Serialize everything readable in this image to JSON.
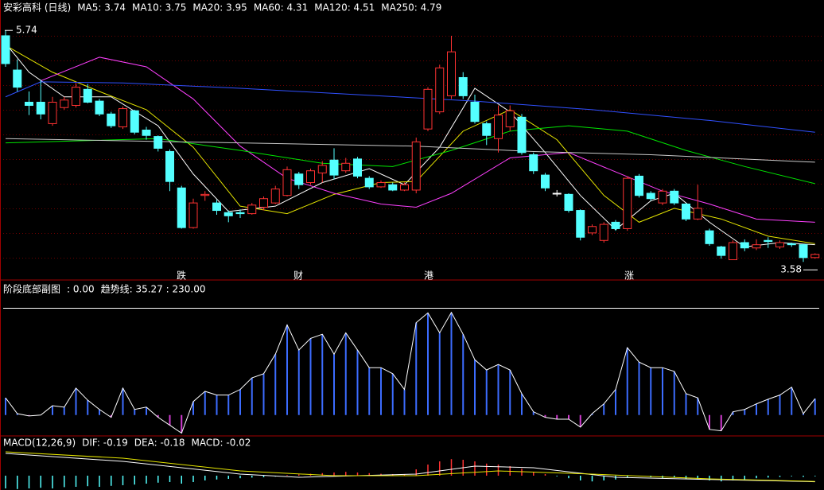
{
  "chart_data": [
    {
      "type": "candlestick",
      "title": "安彩高科 (日线)",
      "open": [
        5.69,
        5.37,
        5.07,
        5.07,
        4.87,
        5.02,
        5.04,
        5.19,
        5.08,
        4.96,
        4.84,
        4.99,
        4.81,
        4.75,
        4.61,
        4.27,
        3.9,
        4.2,
        4.13,
        4.04,
        4.04,
        4.03,
        4.09,
        4.13,
        4.2,
        4.4,
        4.32,
        4.41,
        4.53,
        4.43,
        4.54,
        4.36,
        4.28,
        4.3,
        4.25,
        4.25,
        4.82,
        4.98,
        5.13,
        5.3,
        5.07,
        4.87,
        4.73,
        4.84,
        4.93,
        4.58,
        4.39,
        4.22,
        4.21,
        4.06,
        3.85,
        3.78,
        3.95,
        3.89,
        4.38,
        4.22,
        4.13,
        4.24,
        4.12,
        3.98,
        3.87,
        3.72,
        3.6,
        3.76,
        3.71,
        3.78,
        3.72,
        3.75,
        3.74,
        3.62
      ],
      "high": [
        5.74,
        5.47,
        5.17,
        5.28,
        5.12,
        5.12,
        5.25,
        5.24,
        5.1,
        4.98,
        5.03,
        5.0,
        4.84,
        4.76,
        4.63,
        4.29,
        4.17,
        4.24,
        4.16,
        4.06,
        4.07,
        4.13,
        4.19,
        4.29,
        4.47,
        4.42,
        4.45,
        4.52,
        4.64,
        4.55,
        4.56,
        4.38,
        4.34,
        4.32,
        4.32,
        4.74,
        5.21,
        5.42,
        5.69,
        5.35,
        5.14,
        4.89,
        5.04,
        5.04,
        4.96,
        4.6,
        4.41,
        4.25,
        4.22,
        4.07,
        3.93,
        3.95,
        3.97,
        4.38,
        4.4,
        4.24,
        4.26,
        4.26,
        4.13,
        4.3,
        3.89,
        3.73,
        3.78,
        3.79,
        3.79,
        3.81,
        3.78,
        3.76,
        3.75,
        3.66
      ],
      "low": [
        5.4,
        5.17,
        4.95,
        4.91,
        4.85,
        5.0,
        5.02,
        5.06,
        4.94,
        4.83,
        4.82,
        4.77,
        4.72,
        4.61,
        4.24,
        3.89,
        3.89,
        4.15,
        4.02,
        3.95,
        3.99,
        4.02,
        4.06,
        4.12,
        4.19,
        4.26,
        4.3,
        4.32,
        4.35,
        4.41,
        4.36,
        4.26,
        4.27,
        4.24,
        4.24,
        4.22,
        4.8,
        4.96,
        5.1,
        5.1,
        4.87,
        4.67,
        4.6,
        4.8,
        4.58,
        4.4,
        4.24,
        4.19,
        4.04,
        3.78,
        3.83,
        3.76,
        3.87,
        3.87,
        4.18,
        4.15,
        4.11,
        4.11,
        3.96,
        3.97,
        3.73,
        3.61,
        3.6,
        3.68,
        3.69,
        3.71,
        3.7,
        3.72,
        3.58,
        3.61
      ],
      "close": [
        5.43,
        5.21,
        5.04,
        4.96,
        5.07,
        5.09,
        5.21,
        5.07,
        4.96,
        4.85,
        5.01,
        4.79,
        4.76,
        4.64,
        4.33,
        3.9,
        4.13,
        4.21,
        4.06,
        4.01,
        4.03,
        4.11,
        4.17,
        4.26,
        4.44,
        4.3,
        4.43,
        4.48,
        4.39,
        4.5,
        4.38,
        4.28,
        4.32,
        4.25,
        4.3,
        4.7,
        5.19,
        5.39,
        5.54,
        5.13,
        4.89,
        4.76,
        4.95,
        4.99,
        4.6,
        4.43,
        4.27,
        4.22,
        4.06,
        3.81,
        3.91,
        3.93,
        3.89,
        4.36,
        4.2,
        4.17,
        4.24,
        4.13,
        3.98,
        4.08,
        3.75,
        3.64,
        3.76,
        3.71,
        3.74,
        3.77,
        3.76,
        3.74,
        3.62,
        3.65
      ],
      "up_color": "#ff3232",
      "down_color": "#54ffff",
      "ylim": [
        3.5,
        5.89
      ],
      "series": [
        {
          "name": "MA5: 3.74",
          "color": "#ffffff",
          "x": [
            0,
            2,
            5,
            9,
            13,
            16,
            19,
            23,
            27,
            31,
            34,
            37,
            40,
            43,
            46,
            49,
            52,
            55,
            57,
            60,
            63,
            66,
            69
          ],
          "values": [
            5.62,
            5.35,
            5.12,
            5.12,
            4.85,
            4.4,
            4.05,
            4.1,
            4.32,
            4.45,
            4.3,
            4.65,
            5.2,
            4.98,
            4.6,
            4.2,
            3.88,
            4.15,
            4.22,
            3.95,
            3.72,
            3.76,
            3.74
          ]
        },
        {
          "name": "MA10: 3.75",
          "color": "#e6e600",
          "x": [
            0,
            4,
            8,
            12,
            16,
            20,
            24,
            28,
            32,
            35,
            39,
            43,
            47,
            51,
            54,
            57,
            61,
            65,
            69
          ],
          "values": [
            5.6,
            5.35,
            5.17,
            5.0,
            4.65,
            4.1,
            4.03,
            4.21,
            4.32,
            4.33,
            4.8,
            5.0,
            4.72,
            4.2,
            3.95,
            4.08,
            3.98,
            3.82,
            3.75
          ]
        },
        {
          "name": "MA20: 3.95",
          "color": "#ff40ff",
          "x": [
            3,
            8,
            12,
            16,
            20,
            24,
            28,
            32,
            35,
            38,
            43,
            48,
            52,
            56,
            60,
            64,
            69
          ],
          "values": [
            5.27,
            5.49,
            5.4,
            5.1,
            4.66,
            4.36,
            4.22,
            4.12,
            4.09,
            4.22,
            4.55,
            4.6,
            4.42,
            4.24,
            4.12,
            3.98,
            3.95
          ]
        },
        {
          "name": "MA60: 4.31",
          "color": "#00e600",
          "x": [
            0,
            13,
            20,
            27,
            33,
            38,
            43,
            48,
            53,
            58,
            63,
            69
          ],
          "values": [
            4.69,
            4.73,
            4.62,
            4.5,
            4.47,
            4.62,
            4.8,
            4.85,
            4.8,
            4.62,
            4.47,
            4.31
          ]
        },
        {
          "name": "MA120: 4.51",
          "color": "#c8c8c8",
          "x": [
            0,
            35,
            45,
            55,
            69
          ],
          "values": [
            4.73,
            4.66,
            4.61,
            4.58,
            4.51
          ]
        },
        {
          "name": "MA250: 4.79",
          "color": "#3050ff",
          "x": [
            0,
            3,
            10,
            20,
            30,
            40,
            50,
            60,
            69
          ],
          "values": [
            5.12,
            5.26,
            5.25,
            5.2,
            5.14,
            5.08,
            5.0,
            4.9,
            4.79
          ]
        }
      ],
      "high_label": {
        "value": 5.74,
        "label": "5.74"
      },
      "low_label": {
        "value": 3.58,
        "label": "3.58"
      },
      "events": [
        {
          "label": "跌",
          "color": "#00d000"
        },
        {
          "label": "财",
          "color": "#80c8ff"
        },
        {
          "label": "港",
          "color": "#00d000"
        },
        {
          "label": "涨",
          "color": "#ff4040"
        }
      ]
    },
    {
      "type": "bar",
      "title": "阶段底部副图",
      "subtitle": ": 0.00",
      "series": [
        {
          "name": "趋势线: 35.27 : 230.00",
          "color": "#ffffff",
          "values": [
            37,
            3,
            -2,
            0,
            20,
            17,
            58,
            32,
            12,
            -5,
            58,
            12,
            17,
            -5,
            -22,
            -39,
            29,
            51,
            43,
            43,
            55,
            80,
            89,
            131,
            194,
            140,
            165,
            174,
            131,
            177,
            140,
            102,
            102,
            89,
            55,
            199,
            220,
            177,
            221,
            174,
            119,
            97,
            109,
            97,
            46,
            7,
            -5,
            -9,
            -9,
            -26,
            3,
            24,
            55,
            145,
            114,
            102,
            102,
            94,
            46,
            37,
            -31,
            -34,
            7,
            12,
            24,
            34,
            43,
            60,
            3,
            35.27
          ]
        }
      ],
      "pos_color": "#3c6cff",
      "neg_color": "#d23cd2",
      "reference": 230,
      "ylim": [
        -45,
        260
      ]
    },
    {
      "type": "macd",
      "title": "MACD(12,26,9)",
      "value_name": "MACD: -0.02",
      "values": [
        -0.4,
        -0.42,
        -0.4,
        -0.38,
        -0.4,
        -0.36,
        -0.35,
        -0.33,
        -0.35,
        -0.32,
        -0.3,
        -0.28,
        -0.25,
        -0.22,
        -0.2,
        -0.25,
        -0.2,
        -0.15,
        -0.12,
        -0.1,
        -0.08,
        -0.06,
        -0.05,
        -0.03,
        0.02,
        0.04,
        0.06,
        0.08,
        0.1,
        0.12,
        0.1,
        0.08,
        0.06,
        0.05,
        0.05,
        0.2,
        0.35,
        0.45,
        0.52,
        0.5,
        0.45,
        0.38,
        0.35,
        0.3,
        0.22,
        0.12,
        0.05,
        -0.02,
        -0.08,
        -0.15,
        -0.18,
        -0.15,
        -0.12,
        -0.05,
        -0.02,
        -0.05,
        -0.08,
        -0.06,
        -0.1,
        -0.12,
        -0.15,
        -0.18,
        -0.15,
        -0.12,
        -0.08,
        -0.06,
        -0.04,
        -0.02,
        -0.04,
        -0.02
      ],
      "pos_color": "#ff3232",
      "neg_color": "#54ffff",
      "ylim": [
        -0.45,
        0.95
      ],
      "series": [
        {
          "name": "DIF: -0.19",
          "color": "#ffffff",
          "x": [
            0,
            10,
            20,
            25,
            35,
            40,
            45,
            52,
            60,
            69
          ],
          "values": [
            0.7,
            0.45,
            0.05,
            -0.05,
            0.05,
            0.3,
            0.25,
            -0.05,
            -0.12,
            -0.19
          ]
        },
        {
          "name": "DEA: -0.18",
          "color": "#e6e600",
          "x": [
            0,
            10,
            20,
            28,
            35,
            42,
            50,
            60,
            69
          ],
          "values": [
            0.75,
            0.55,
            0.15,
            0.0,
            0.0,
            0.15,
            0.05,
            -0.1,
            -0.18
          ]
        }
      ],
      "name_color": "#ff40ff"
    }
  ]
}
